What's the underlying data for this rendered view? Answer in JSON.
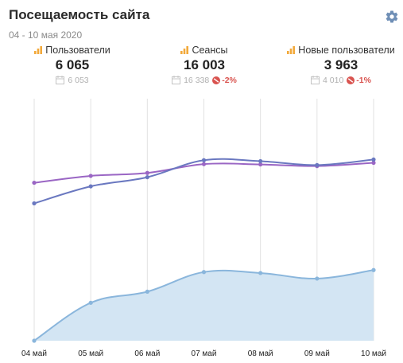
{
  "header": {
    "title": "Посещаемость сайта",
    "date_range": "04 - 10 мая 2020",
    "settings_icon": "gear-icon"
  },
  "metrics": [
    {
      "label": "Пользователи",
      "value": "6 065",
      "previous": "6 053",
      "delta": ""
    },
    {
      "label": "Сеансы",
      "value": "16 003",
      "previous": "16 338",
      "delta": "-2%"
    },
    {
      "label": "Новые пользователи",
      "value": "3 963",
      "previous": "4 010",
      "delta": "-1%"
    }
  ],
  "colors": {
    "users_line": "#6a78c0",
    "sessions_line": "#9a66c4",
    "new_users_line": "#8ab6dc",
    "new_users_fill": "#d3e5f3",
    "grid": "#e2e2e2",
    "delta_negative": "#d9534f",
    "metric_icon": "#f2a93b"
  },
  "chart_data": {
    "type": "line",
    "categories": [
      "04 май",
      "05 май",
      "06 май",
      "07 май",
      "08 май",
      "09 май",
      "10 май"
    ],
    "series": [
      {
        "name": "Сеансы",
        "values": [
          2415,
          2520,
          2565,
          2700,
          2695,
          2670,
          2720
        ]
      },
      {
        "name": "Пользователи",
        "values": [
          2100,
          2360,
          2500,
          2760,
          2745,
          2685,
          2770
        ]
      },
      {
        "name": "Новые пользователи",
        "values": [
          0,
          580,
          750,
          1050,
          1035,
          950,
          1080
        ],
        "area": true
      }
    ],
    "ylim": [
      0,
      3700
    ],
    "grid": "vertical",
    "legend": "none"
  }
}
